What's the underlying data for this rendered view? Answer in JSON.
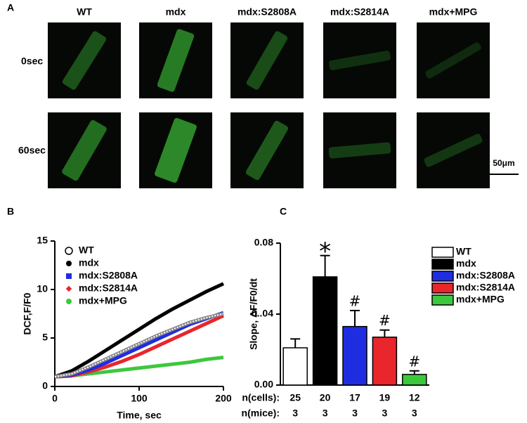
{
  "panel_a": {
    "label": "A",
    "columns": [
      "WT",
      "mdx",
      "mdx:S2808A",
      "mdx:S2814A",
      "mdx+MPG"
    ],
    "rows": [
      "0sec",
      "60sec"
    ],
    "scale_bar": "50μm"
  },
  "chart_data": [
    {
      "type": "line",
      "label": "B",
      "xlabel": "Time, sec",
      "ylabel": "DCF,F/F0",
      "x": [
        0,
        20,
        40,
        60,
        80,
        100,
        120,
        140,
        160,
        180,
        200
      ],
      "series": [
        {
          "name": "WT",
          "color": "#888888",
          "values": [
            1,
            1.3,
            2.0,
            2.8,
            3.6,
            4.4,
            5.2,
            5.9,
            6.6,
            7.1,
            7.5
          ]
        },
        {
          "name": "mdx",
          "color": "#000000",
          "values": [
            1,
            1.6,
            2.6,
            3.7,
            4.8,
            5.9,
            7.0,
            8.0,
            8.9,
            9.8,
            10.6
          ]
        },
        {
          "name": "mdx:S2808A",
          "color": "#1f2de0",
          "values": [
            1,
            1.2,
            1.7,
            2.4,
            3.2,
            4.0,
            4.8,
            5.6,
            6.4,
            7.0,
            7.6
          ]
        },
        {
          "name": "mdx:S2814A",
          "color": "#e8262b",
          "values": [
            1,
            1.1,
            1.5,
            2.0,
            2.6,
            3.3,
            4.1,
            4.9,
            5.7,
            6.5,
            7.3
          ]
        },
        {
          "name": "mdx+MPG",
          "color": "#3cc83c",
          "values": [
            1,
            1.1,
            1.3,
            1.5,
            1.7,
            1.9,
            2.1,
            2.3,
            2.5,
            2.8,
            3.0
          ]
        }
      ],
      "xlim": [
        0,
        200
      ],
      "xticks": [
        0,
        100,
        200
      ],
      "ylim": [
        0,
        15
      ],
      "yticks": [
        0,
        5,
        10,
        15
      ]
    },
    {
      "type": "bar",
      "label": "C",
      "ylabel": "Slope, ΔF/F0/dt",
      "categories": [
        "WT",
        "mdx",
        "mdx:S2808A",
        "mdx:S2814A",
        "mdx+MPG"
      ],
      "colors": [
        "#ffffff",
        "#000000",
        "#1f2de0",
        "#e8262b",
        "#3cc83c"
      ],
      "values": [
        0.021,
        0.061,
        0.033,
        0.027,
        0.006
      ],
      "errors": [
        0.005,
        0.012,
        0.009,
        0.004,
        0.002
      ],
      "markers": [
        null,
        "*",
        "#",
        "#",
        "#"
      ],
      "ylim": [
        0,
        0.08
      ],
      "yticks": [
        {
          "value": 0,
          "label": "0.00"
        },
        {
          "value": 0.04,
          "label": "0..04"
        },
        {
          "value": 0.08,
          "label": "0.08"
        }
      ],
      "table": [
        {
          "label": "n(cells):",
          "values": [
            25,
            20,
            17,
            19,
            12
          ]
        },
        {
          "label": "n(mice):",
          "values": [
            3,
            3,
            3,
            3,
            3
          ]
        }
      ]
    }
  ]
}
